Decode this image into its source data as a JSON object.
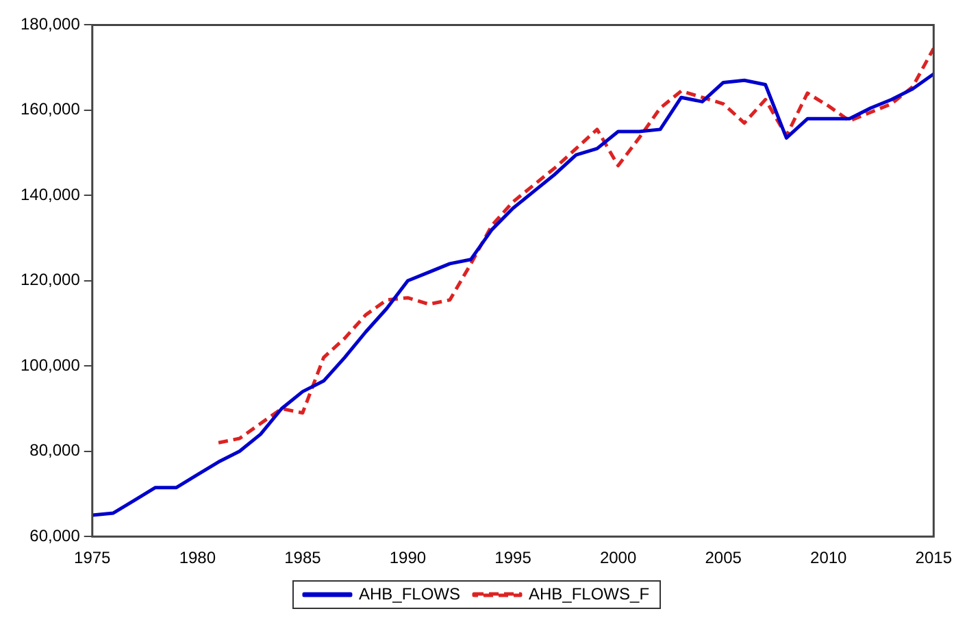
{
  "chart_data": {
    "type": "line",
    "x": [
      1975,
      1976,
      1977,
      1978,
      1979,
      1980,
      1981,
      1982,
      1983,
      1984,
      1985,
      1986,
      1987,
      1988,
      1989,
      1990,
      1991,
      1992,
      1993,
      1994,
      1995,
      1996,
      1997,
      1998,
      1999,
      2000,
      2001,
      2002,
      2003,
      2004,
      2005,
      2006,
      2007,
      2008,
      2009,
      2010,
      2011,
      2012,
      2013,
      2014,
      2015
    ],
    "series": [
      {
        "name": "AHB_FLOWS",
        "color": "#0000cc",
        "line_style": "solid",
        "values": [
          65000,
          65500,
          68500,
          71500,
          71500,
          74500,
          77500,
          80000,
          84000,
          90000,
          94000,
          96500,
          102000,
          108000,
          113500,
          120000,
          122000,
          124000,
          125000,
          132000,
          137000,
          141000,
          145000,
          149500,
          151000,
          155000,
          155000,
          155500,
          163000,
          162000,
          166500,
          167000,
          166000,
          153500,
          158000,
          158000,
          158000,
          160500,
          162500,
          165000,
          168500
        ]
      },
      {
        "name": "AHB_FLOWS_F",
        "color": "#dd2222",
        "line_style": "dashed",
        "x": [
          1981,
          1982,
          1983,
          1984,
          1985,
          1986,
          1987,
          1988,
          1989,
          1990,
          1991,
          1992,
          1993,
          1994,
          1995,
          1996,
          1997,
          1998,
          1999,
          2000,
          2001,
          2002,
          2003,
          2004,
          2005,
          2006,
          2007,
          2008,
          2009,
          2010,
          2011,
          2012,
          2013,
          2014,
          2015
        ],
        "values": [
          82000,
          83000,
          86500,
          90000,
          89000,
          102000,
          106500,
          112000,
          115500,
          116000,
          114500,
          115500,
          124000,
          133000,
          138500,
          142500,
          146500,
          151000,
          155500,
          147000,
          153500,
          160500,
          164500,
          163000,
          161500,
          157000,
          162500,
          154000,
          164000,
          161000,
          157500,
          159500,
          161500,
          165500,
          174500
        ]
      }
    ],
    "xlim": [
      1975,
      2015
    ],
    "xticks": [
      1975,
      1980,
      1985,
      1990,
      1995,
      2000,
      2005,
      2010,
      2015
    ],
    "ylim": [
      60000,
      180000
    ],
    "yticks": [
      {
        "value": 60000,
        "label": "60,000"
      },
      {
        "value": 80000,
        "label": "80,000"
      },
      {
        "value": 100000,
        "label": "100,000"
      },
      {
        "value": 120000,
        "label": "120,000"
      },
      {
        "value": 140000,
        "label": "140,000"
      },
      {
        "value": 160000,
        "label": "160,000"
      },
      {
        "value": 180000,
        "label": "180,000"
      }
    ],
    "grid": false,
    "legend": "bottom",
    "marker": "none"
  }
}
